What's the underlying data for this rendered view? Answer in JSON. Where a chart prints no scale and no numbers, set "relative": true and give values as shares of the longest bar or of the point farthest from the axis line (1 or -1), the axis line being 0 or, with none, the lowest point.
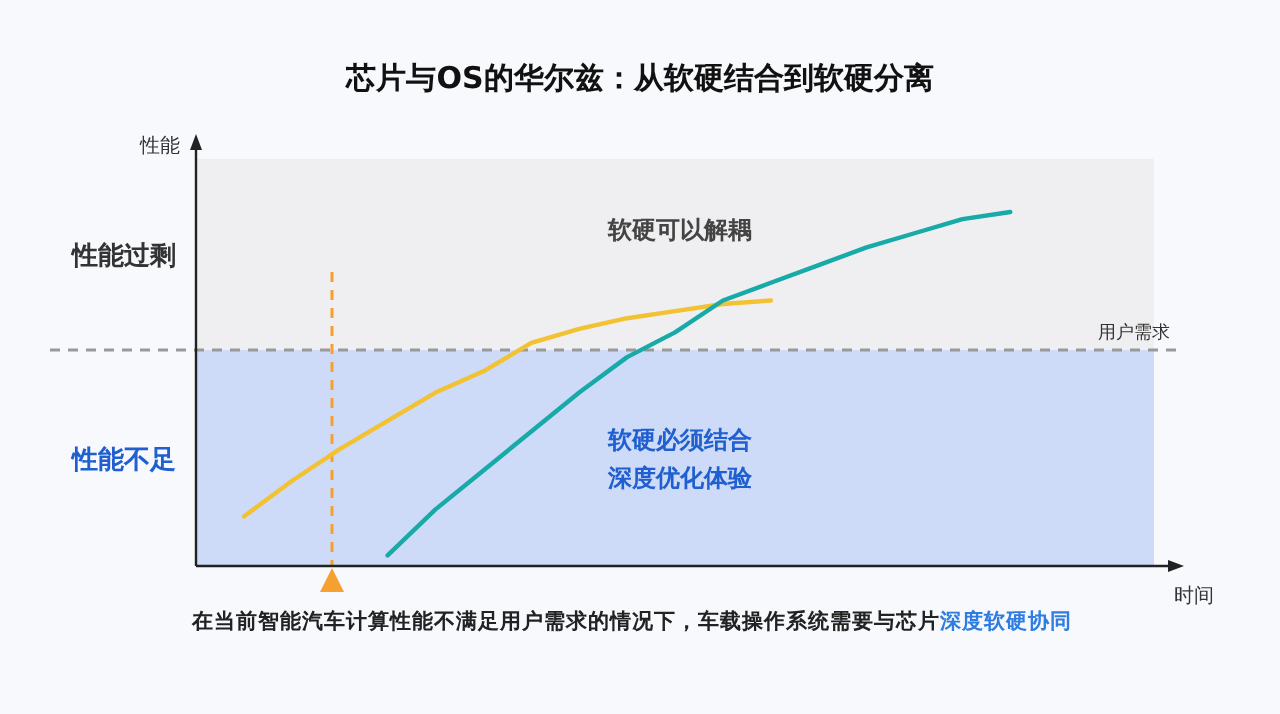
{
  "chart_data": {
    "type": "line",
    "relative": true,
    "title": "芯片与OS的华尔兹：从软硬结合到软硬分离",
    "xlabel": "时间",
    "ylabel": "性能",
    "categories": [
      null,
      null,
      null,
      null,
      null,
      null,
      null,
      null,
      null,
      null,
      null,
      null,
      null,
      null,
      null,
      null,
      null,
      null,
      null,
      null,
      null
    ],
    "series": [
      {
        "color": "#f2c232",
        "values": [
          null,
          0.14,
          0.24,
          0.33,
          0.41,
          0.49,
          0.55,
          0.63,
          0.67,
          0.7,
          0.72,
          0.74,
          0.75,
          null,
          null,
          null,
          null,
          null,
          null,
          null,
          null
        ]
      },
      {
        "color": "#17aaa8",
        "values": [
          null,
          null,
          null,
          null,
          0.03,
          0.16,
          0.27,
          0.38,
          0.49,
          0.59,
          0.66,
          0.75,
          0.8,
          0.85,
          0.9,
          0.94,
          0.98,
          1,
          null,
          null,
          null
        ]
      }
    ],
    "bands": [
      {
        "axis": "y",
        "from": 0.61,
        "to": 1.15,
        "label": "性能过剩",
        "color": "#efeff1"
      },
      {
        "axis": "y",
        "from": 0,
        "to": 0.61,
        "label": "性能不足",
        "color": "#cddbf8"
      }
    ],
    "ref_lines": [
      {
        "axis": "y",
        "value": 0.61,
        "label": "用户需求",
        "color": "#999999",
        "line_style": "dashed"
      }
    ],
    "annotations": [
      "软硬可以解耦",
      "软硬必须结合",
      "深度优化体验",
      "在当前智能汽车计算性能不满足用户需求的情况下，车载操作系统需要与芯片",
      "深度软硬协同"
    ],
    "marker": "none",
    "line_style": "solid"
  }
}
